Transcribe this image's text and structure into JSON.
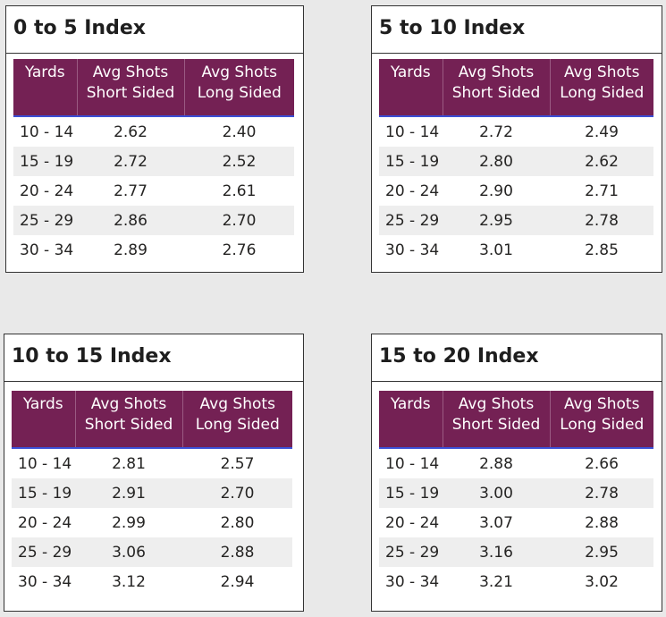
{
  "columns": [
    "Yards",
    "Avg Shots Short Sided",
    "Avg Shots Long Sided"
  ],
  "cards": [
    {
      "title": "0 to 5 Index",
      "rows": [
        [
          "10 - 14",
          "2.62",
          "2.40"
        ],
        [
          "15 - 19",
          "2.72",
          "2.52"
        ],
        [
          "20 - 24",
          "2.77",
          "2.61"
        ],
        [
          "25 - 29",
          "2.86",
          "2.70"
        ],
        [
          "30 - 34",
          "2.89",
          "2.76"
        ]
      ]
    },
    {
      "title": "5 to 10 Index",
      "rows": [
        [
          "10 - 14",
          "2.72",
          "2.49"
        ],
        [
          "15 - 19",
          "2.80",
          "2.62"
        ],
        [
          "20 - 24",
          "2.90",
          "2.71"
        ],
        [
          "25 - 29",
          "2.95",
          "2.78"
        ],
        [
          "30 - 34",
          "3.01",
          "2.85"
        ]
      ]
    },
    {
      "title": "10 to 15 Index",
      "rows": [
        [
          "10 - 14",
          "2.81",
          "2.57"
        ],
        [
          "15 - 19",
          "2.91",
          "2.70"
        ],
        [
          "20 - 24",
          "2.99",
          "2.80"
        ],
        [
          "25 - 29",
          "3.06",
          "2.88"
        ],
        [
          "30 - 34",
          "3.12",
          "2.94"
        ]
      ]
    },
    {
      "title": "15 to 20 Index",
      "rows": [
        [
          "10 - 14",
          "2.88",
          "2.66"
        ],
        [
          "15 - 19",
          "3.00",
          "2.78"
        ],
        [
          "20 - 24",
          "3.07",
          "2.88"
        ],
        [
          "25 - 29",
          "3.16",
          "2.95"
        ],
        [
          "30 - 34",
          "3.21",
          "3.02"
        ]
      ]
    }
  ],
  "colors": {
    "header_bg": "#742154",
    "header_text": "#ffffff",
    "accent_line": "#3b4fd6",
    "band_row": "#eeeeee",
    "page_bg": "#e9e9e9"
  }
}
